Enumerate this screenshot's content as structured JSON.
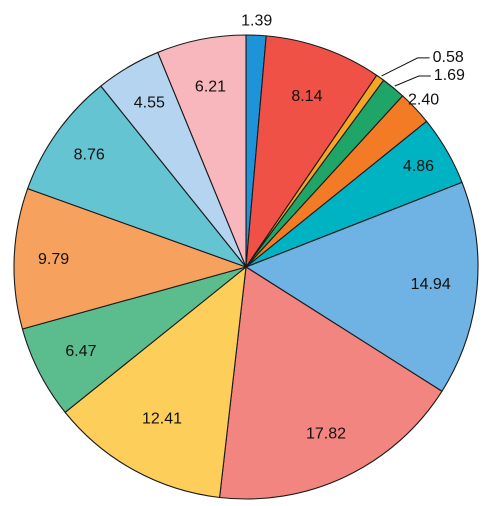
{
  "chart_data": {
    "type": "pie",
    "title": "",
    "start_angle_deg": -90,
    "direction": "clockwise",
    "legend": "none",
    "values": [
      1.39,
      8.14,
      0.58,
      1.69,
      2.4,
      4.86,
      14.94,
      17.82,
      12.41,
      6.47,
      9.79,
      8.76,
      4.55,
      6.21
    ],
    "labels": [
      "1.39",
      "8.14",
      "0.58",
      "1.69",
      "2.40",
      "4.86",
      "14.94",
      "17.82",
      "12.41",
      "6.47",
      "9.79",
      "8.76",
      "4.55",
      "6.21"
    ],
    "colors": [
      "#1f93d8",
      "#ef5147",
      "#f6a623",
      "#1fa567",
      "#f47b25",
      "#00b3c3",
      "#6fb2e4",
      "#f28580",
      "#fdce5a",
      "#5bbd8e",
      "#f7a15f",
      "#64c4d2",
      "#b5d4f0",
      "#f8b7bd"
    ]
  }
}
